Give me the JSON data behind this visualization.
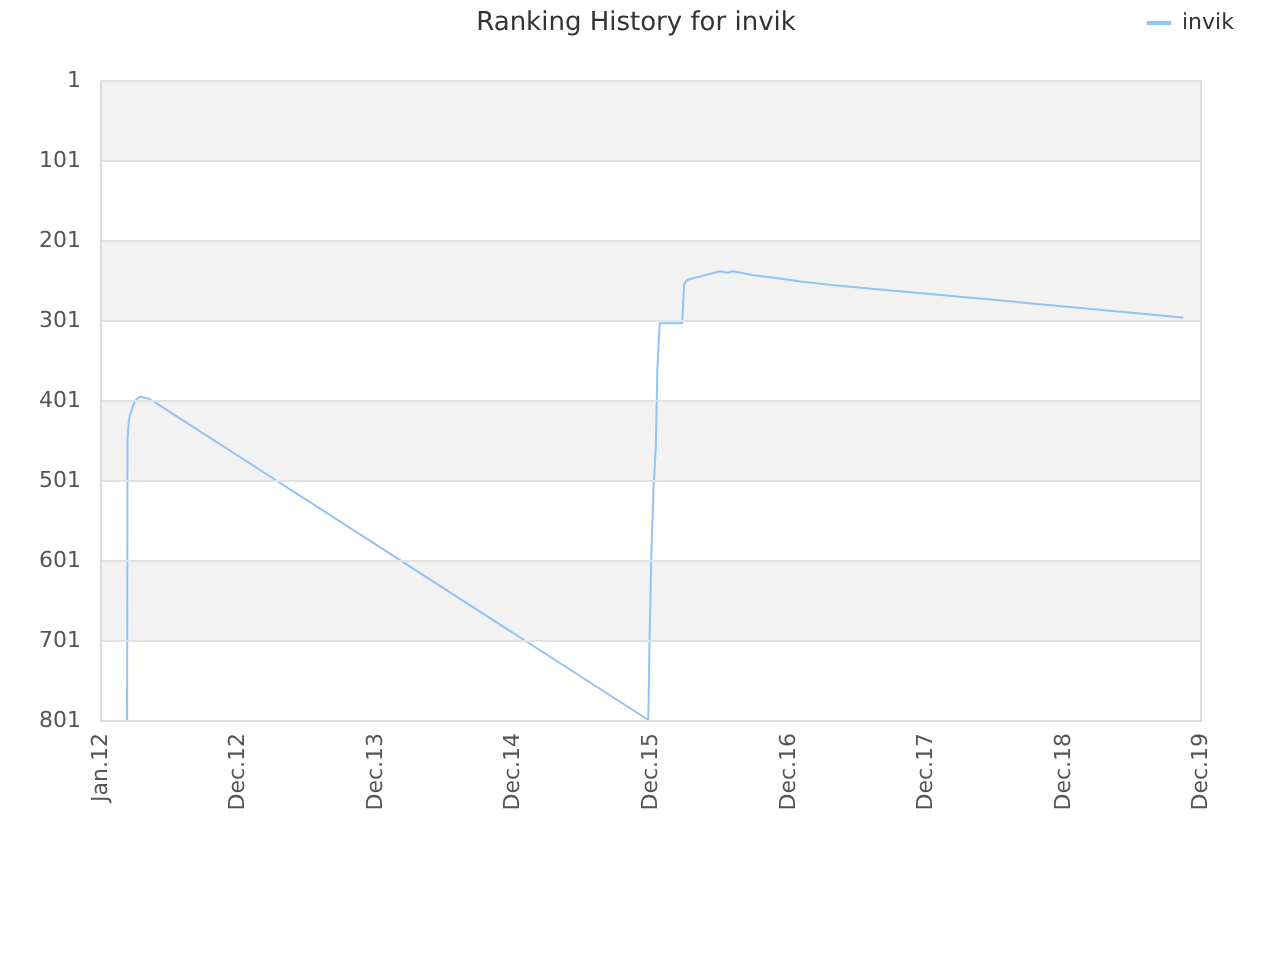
{
  "chart_data": {
    "type": "line",
    "title": "Ranking History for invik",
    "x": [
      "2012-03-13",
      "2012-03-14",
      "2012-03-17",
      "2012-03-20",
      "2012-03-29",
      "2012-04-05",
      "2012-04-16",
      "2012-05-07",
      "2012-05-23",
      "2015-12-27",
      "2015-12-30",
      "2016-01-04",
      "2016-01-10",
      "2016-01-16",
      "2016-01-20",
      "2016-01-26",
      "2016-01-27",
      "2016-03-26",
      "2016-03-31",
      "2016-04-07",
      "2016-07-05",
      "2016-07-22",
      "2016-08-09",
      "2016-10-01",
      "2016-12-11",
      "2017-02-02",
      "2017-05-09",
      "2018-06-15",
      "2019-11-14"
    ],
    "series": [
      {
        "name": "invik",
        "color": "#90c4f5",
        "values": [
          801,
          451,
          430,
          421,
          408,
          401,
          397,
          399,
          403,
          801,
          709,
          596,
          509,
          459,
          363,
          309,
          305,
          305,
          257,
          251,
          240,
          242,
          240,
          245,
          249,
          253,
          258,
          275,
          298
        ]
      }
    ],
    "xlim": [
      "2012-01-01",
      "2019-12-31"
    ],
    "xticks": [
      {
        "value": "2012-01-01",
        "label": "Jan.12"
      },
      {
        "value": "2012-12-31",
        "label": "Dec.12"
      },
      {
        "value": "2013-12-31",
        "label": "Dec.13"
      },
      {
        "value": "2014-12-31",
        "label": "Dec.14"
      },
      {
        "value": "2015-12-31",
        "label": "Dec.15"
      },
      {
        "value": "2016-12-31",
        "label": "Dec.16"
      },
      {
        "value": "2017-12-31",
        "label": "Dec.17"
      },
      {
        "value": "2018-12-31",
        "label": "Dec.18"
      },
      {
        "value": "2019-12-31",
        "label": "Dec.19"
      }
    ],
    "ylim": [
      801,
      1
    ],
    "yticks": [
      1,
      101,
      201,
      301,
      401,
      501,
      601,
      701,
      801
    ],
    "bands": [
      {
        "axis": "y",
        "from": 1,
        "to": 101,
        "color": "#f2f2f2"
      },
      {
        "axis": "y",
        "from": 201,
        "to": 301,
        "color": "#f2f2f2"
      },
      {
        "axis": "y",
        "from": 401,
        "to": 501,
        "color": "#f2f2f2"
      },
      {
        "axis": "y",
        "from": 601,
        "to": 701,
        "color": "#f2f2f2"
      }
    ],
    "grid": "y",
    "legend": "top right"
  }
}
